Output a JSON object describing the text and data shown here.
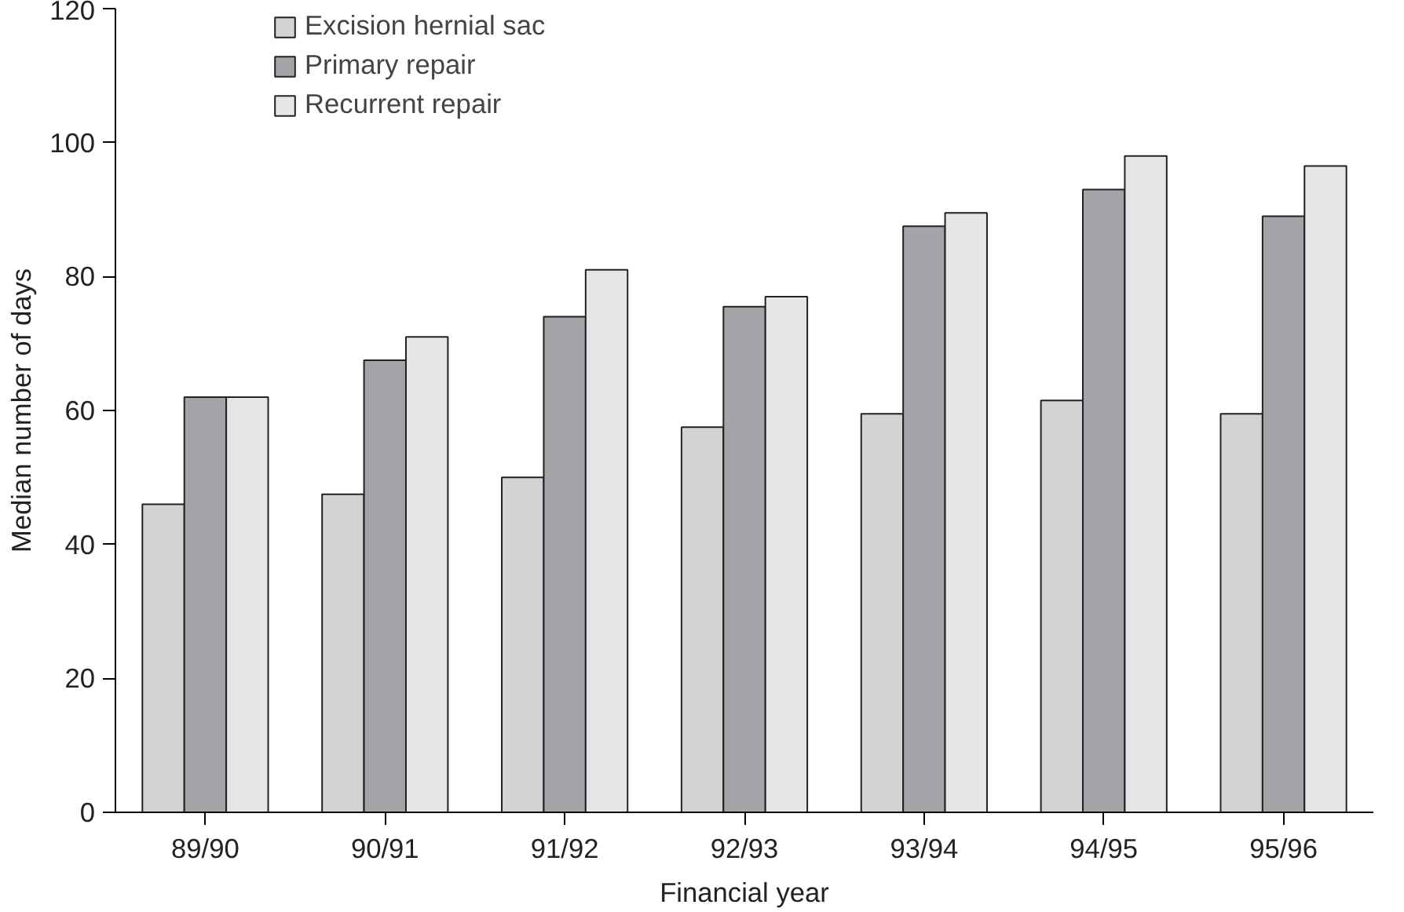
{
  "chart_data": {
    "type": "bar",
    "xlabel": "Financial year",
    "ylabel": "Median number of days",
    "categories": [
      "89/90",
      "90/91",
      "91/92",
      "92/93",
      "93/94",
      "94/95",
      "95/96"
    ],
    "series": [
      {
        "name": "Excision hernial sac",
        "color": "#d3d3d5",
        "values": [
          46,
          47.5,
          50,
          57.5,
          59.5,
          61.5,
          59.5
        ]
      },
      {
        "name": "Primary repair",
        "color": "#a4a4a8",
        "values": [
          62,
          67.5,
          74,
          75.5,
          87.5,
          93,
          89
        ]
      },
      {
        "name": "Recurrent repair",
        "color": "#e6e6e8",
        "values": [
          62,
          71,
          81,
          77,
          89.5,
          98,
          96.5
        ]
      }
    ],
    "ylim": [
      0,
      120
    ],
    "yticks": [
      0,
      20,
      40,
      60,
      80,
      100,
      120
    ],
    "grid": false,
    "legend": "top left"
  }
}
